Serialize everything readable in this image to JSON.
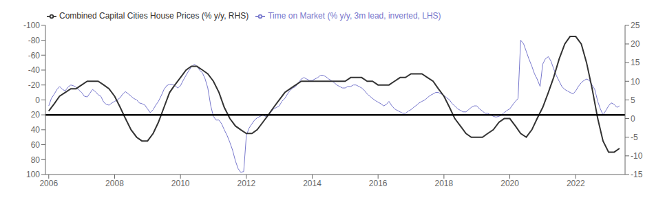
{
  "chart_data": {
    "type": "line",
    "grid": false,
    "legend": "upper left",
    "xlim": [
      2005.9,
      2023.5
    ],
    "xticks": [
      2006,
      2008,
      2010,
      2012,
      2014,
      2016,
      2018,
      2020,
      2022
    ],
    "ylim": [
      100,
      -100
    ],
    "yticks": [
      -100,
      -80,
      -60,
      -40,
      -20,
      0,
      20,
      40,
      60,
      80,
      100
    ],
    "y2lim": [
      -15,
      25
    ],
    "y2ticks": [
      -15,
      -10,
      -5,
      0,
      5,
      10,
      15,
      20,
      25
    ],
    "hlines": [
      {
        "value": 20,
        "axis": "y",
        "color": "#000000"
      }
    ],
    "series": [
      {
        "name": "Time on Market (% y/y, 3m lead, inverted, LHS)",
        "color": "#7777cc",
        "axis": "y",
        "x": [
          2006.0,
          2006.08,
          2006.17,
          2006.25,
          2006.33,
          2006.42,
          2006.5,
          2006.58,
          2006.67,
          2006.75,
          2006.83,
          2006.92,
          2007.0,
          2007.08,
          2007.17,
          2007.25,
          2007.33,
          2007.42,
          2007.5,
          2007.58,
          2007.67,
          2007.75,
          2007.83,
          2007.92,
          2008.0,
          2008.08,
          2008.17,
          2008.25,
          2008.33,
          2008.42,
          2008.5,
          2008.58,
          2008.67,
          2008.75,
          2008.83,
          2008.92,
          2009.0,
          2009.08,
          2009.17,
          2009.25,
          2009.33,
          2009.42,
          2009.5,
          2009.58,
          2009.67,
          2009.75,
          2009.83,
          2009.92,
          2010.0,
          2010.08,
          2010.17,
          2010.25,
          2010.33,
          2010.42,
          2010.5,
          2010.58,
          2010.67,
          2010.75,
          2010.83,
          2010.92,
          2011.0,
          2011.08,
          2011.17,
          2011.25,
          2011.33,
          2011.42,
          2011.5,
          2011.58,
          2011.67,
          2011.75,
          2011.83,
          2011.92,
          2012.0,
          2012.08,
          2012.17,
          2012.25,
          2012.33,
          2012.42,
          2012.5,
          2012.58,
          2012.67,
          2012.75,
          2012.83,
          2012.92,
          2013.0,
          2013.08,
          2013.17,
          2013.25,
          2013.33,
          2013.42,
          2013.5,
          2013.58,
          2013.67,
          2013.75,
          2013.83,
          2013.92,
          2014.0,
          2014.08,
          2014.17,
          2014.25,
          2014.33,
          2014.42,
          2014.5,
          2014.58,
          2014.67,
          2014.75,
          2014.83,
          2014.92,
          2015.0,
          2015.08,
          2015.17,
          2015.25,
          2015.33,
          2015.42,
          2015.5,
          2015.58,
          2015.67,
          2015.75,
          2015.83,
          2015.92,
          2016.0,
          2016.08,
          2016.17,
          2016.25,
          2016.33,
          2016.42,
          2016.5,
          2016.58,
          2016.67,
          2016.75,
          2016.83,
          2016.92,
          2017.0,
          2017.08,
          2017.17,
          2017.25,
          2017.33,
          2017.42,
          2017.5,
          2017.58,
          2017.67,
          2017.75,
          2017.83,
          2017.92,
          2018.0,
          2018.08,
          2018.17,
          2018.25,
          2018.33,
          2018.42,
          2018.5,
          2018.58,
          2018.67,
          2018.75,
          2018.83,
          2018.92,
          2019.0,
          2019.08,
          2019.17,
          2019.25,
          2019.33,
          2019.42,
          2019.5,
          2019.58,
          2019.67,
          2019.75,
          2019.83,
          2019.92,
          2020.0,
          2020.08,
          2020.17,
          2020.25,
          2020.33,
          2020.42,
          2020.5,
          2020.58,
          2020.67,
          2020.75,
          2020.83,
          2020.92,
          2021.0,
          2021.08,
          2021.17,
          2021.25,
          2021.33,
          2021.42,
          2021.5,
          2021.58,
          2021.67,
          2021.75,
          2021.83,
          2021.92,
          2022.0,
          2022.08,
          2022.17,
          2022.25,
          2022.33,
          2022.42,
          2022.5,
          2022.58,
          2022.67,
          2022.75,
          2022.83,
          2022.92,
          2023.0,
          2023.08,
          2023.17,
          2023.25,
          2023.33
        ],
        "values": [
          8,
          -2,
          -8,
          -14,
          -18,
          -14,
          -12,
          -17,
          -20,
          -19,
          -17,
          -13,
          -10,
          -5,
          -4,
          -9,
          -14,
          -11,
          -7,
          -5,
          3,
          6,
          7,
          4,
          2,
          0,
          -3,
          -8,
          -11,
          -8,
          -5,
          -2,
          0,
          4,
          5,
          7,
          12,
          17,
          13,
          7,
          2,
          -6,
          -14,
          -19,
          -21,
          -21,
          -19,
          -16,
          -19,
          -26,
          -33,
          -39,
          -44,
          -48,
          -45,
          -40,
          -36,
          -28,
          -16,
          8,
          22,
          27,
          27,
          32,
          40,
          48,
          57,
          67,
          82,
          92,
          97,
          96,
          48,
          38,
          32,
          27,
          24,
          22,
          20,
          22,
          21,
          16,
          12,
          10,
          8,
          2,
          -2,
          -8,
          -13,
          -16,
          -18,
          -23,
          -28,
          -30,
          -28,
          -26,
          -26,
          -28,
          -30,
          -33,
          -33,
          -31,
          -28,
          -26,
          -23,
          -20,
          -18,
          -16,
          -16,
          -18,
          -18,
          -20,
          -20,
          -18,
          -16,
          -13,
          -8,
          -5,
          -2,
          1,
          3,
          5,
          8,
          6,
          2,
          8,
          12,
          14,
          16,
          18,
          18,
          15,
          13,
          10,
          7,
          4,
          2,
          0,
          -3,
          -6,
          -8,
          -10,
          -10,
          -8,
          -6,
          -3,
          0,
          5,
          8,
          12,
          14,
          16,
          16,
          13,
          10,
          8,
          8,
          12,
          15,
          18,
          18,
          20,
          22,
          23,
          22,
          20,
          17,
          14,
          12,
          7,
          2,
          -2,
          -80,
          -75,
          -65,
          -55,
          -45,
          -35,
          -28,
          -18,
          -48,
          -55,
          -58,
          -52,
          -42,
          -32,
          -25,
          -18,
          -14,
          -12,
          -10,
          -8,
          -12,
          -18,
          -23,
          -26,
          -28,
          -26,
          -20,
          -14,
          2,
          12,
          20,
          14,
          8,
          4,
          6,
          10,
          8
        ]
      },
      {
        "name": "Combined Capital Cities House Prices (% y/y, RHS)",
        "color": "#333333",
        "axis": "y2",
        "x": [
          2006.0,
          2006.17,
          2006.33,
          2006.5,
          2006.67,
          2006.83,
          2007.0,
          2007.17,
          2007.33,
          2007.5,
          2007.67,
          2007.83,
          2008.0,
          2008.17,
          2008.33,
          2008.5,
          2008.67,
          2008.83,
          2009.0,
          2009.17,
          2009.33,
          2009.5,
          2009.67,
          2009.83,
          2010.0,
          2010.17,
          2010.33,
          2010.5,
          2010.67,
          2010.83,
          2011.0,
          2011.17,
          2011.33,
          2011.5,
          2011.67,
          2011.83,
          2012.0,
          2012.17,
          2012.33,
          2012.5,
          2012.67,
          2012.83,
          2013.0,
          2013.17,
          2013.33,
          2013.5,
          2013.67,
          2013.83,
          2014.0,
          2014.17,
          2014.33,
          2014.5,
          2014.67,
          2014.83,
          2015.0,
          2015.17,
          2015.33,
          2015.5,
          2015.67,
          2015.83,
          2016.0,
          2016.17,
          2016.33,
          2016.5,
          2016.67,
          2016.83,
          2017.0,
          2017.17,
          2017.33,
          2017.5,
          2017.67,
          2017.83,
          2018.0,
          2018.17,
          2018.33,
          2018.5,
          2018.67,
          2018.83,
          2019.0,
          2019.17,
          2019.33,
          2019.5,
          2019.67,
          2019.83,
          2020.0,
          2020.17,
          2020.33,
          2020.5,
          2020.67,
          2020.83,
          2021.0,
          2021.17,
          2021.33,
          2021.5,
          2021.67,
          2021.83,
          2022.0,
          2022.17,
          2022.33,
          2022.5,
          2022.67,
          2022.83,
          2023.0,
          2023.17,
          2023.33
        ],
        "values": [
          2,
          4,
          6,
          7,
          8,
          8,
          9,
          10,
          10,
          10,
          9,
          8,
          6,
          3,
          0,
          -3,
          -5,
          -6,
          -6,
          -4,
          -1,
          3,
          7,
          9,
          11,
          13,
          14,
          14,
          13,
          12,
          10,
          7,
          3,
          0,
          -2,
          -3,
          -4,
          -4,
          -3,
          -1,
          1,
          3,
          5,
          7,
          8,
          9,
          10,
          10,
          10,
          10,
          10,
          10,
          10,
          10,
          10,
          11,
          11,
          11,
          10,
          10,
          9,
          9,
          9,
          10,
          11,
          11,
          12,
          12,
          12,
          11,
          10,
          8,
          6,
          3,
          0,
          -2,
          -4,
          -5,
          -5,
          -5,
          -4,
          -3,
          -1,
          0,
          0,
          -2,
          -4,
          -5,
          -3,
          0,
          3,
          7,
          11,
          16,
          20,
          22,
          22,
          20,
          15,
          8,
          0,
          -6,
          -9,
          -9,
          -8
        ]
      }
    ]
  }
}
